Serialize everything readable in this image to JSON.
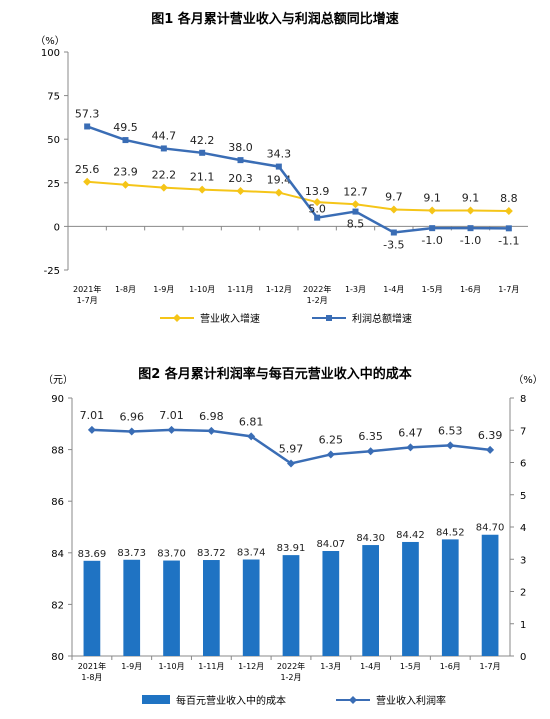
{
  "chart_data": [
    {
      "type": "line",
      "title": "图1 各月累计营业收入与利润总额同比增速",
      "ylabel": "（%）",
      "ylim": [
        -25,
        100
      ],
      "yticks": [
        "100",
        "75",
        "50",
        "25",
        "0",
        "-25"
      ],
      "categories": [
        "2021年1-7月",
        "1-8月",
        "1-9月",
        "1-10月",
        "1-11月",
        "1-12月",
        "2022年1-2月",
        "1-3月",
        "1-4月",
        "1-5月",
        "1-6月",
        "1-7月"
      ],
      "category_lines": [
        [
          "2021年",
          "1-7月"
        ],
        [
          "1-8月"
        ],
        [
          "1-9月"
        ],
        [
          "1-10月"
        ],
        [
          "1-11月"
        ],
        [
          "1-12月"
        ],
        [
          "2022年",
          "1-2月"
        ],
        [
          "1-3月"
        ],
        [
          "1-4月"
        ],
        [
          "1-5月"
        ],
        [
          "1-6月"
        ],
        [
          "1-7月"
        ]
      ],
      "series": [
        {
          "name": "营业收入增速",
          "color": "#f5c518",
          "values": [
            25.6,
            23.9,
            22.2,
            21.1,
            20.3,
            19.4,
            13.9,
            12.7,
            9.7,
            9.1,
            9.1,
            8.8
          ],
          "labels": [
            "25.6",
            "23.9",
            "22.2",
            "21.1",
            "20.3",
            "19.4",
            "13.9",
            "12.7",
            "9.7",
            "9.1",
            "9.1",
            "8.8"
          ]
        },
        {
          "name": "利润总额增速",
          "color": "#3a6db5",
          "values": [
            57.3,
            49.5,
            44.7,
            42.2,
            38.0,
            34.3,
            5.0,
            8.5,
            -3.5,
            -1.0,
            -1.0,
            -1.1
          ],
          "labels": [
            "57.3",
            "49.5",
            "44.7",
            "42.2",
            "38.0",
            "34.3",
            "5.0",
            "8.5",
            "-3.5",
            "-1.0",
            "-1.0",
            "-1.1"
          ]
        }
      ],
      "legend": "bottom"
    },
    {
      "type": "bar+line",
      "title": "图2 各月累计利润率与每百元营业收入中的成本",
      "ylabel_left": "（元）",
      "ylabel_right": "（%）",
      "ylim_left": [
        80,
        90
      ],
      "ylim_right": [
        0,
        8
      ],
      "yticks_left": [
        "90",
        "88",
        "86",
        "84",
        "82",
        "80"
      ],
      "yticks_right": [
        "8",
        "7",
        "6",
        "5",
        "4",
        "3",
        "2",
        "1",
        "0"
      ],
      "categories": [
        "2021年1-8月",
        "1-9月",
        "1-10月",
        "1-11月",
        "1-12月",
        "2022年1-2月",
        "1-3月",
        "1-4月",
        "1-5月",
        "1-6月",
        "1-7月"
      ],
      "category_lines": [
        [
          "2021年",
          "1-8月"
        ],
        [
          "1-9月"
        ],
        [
          "1-10月"
        ],
        [
          "1-11月"
        ],
        [
          "1-12月"
        ],
        [
          "2022年",
          "1-2月"
        ],
        [
          "1-3月"
        ],
        [
          "1-4月"
        ],
        [
          "1-5月"
        ],
        [
          "1-6月"
        ],
        [
          "1-7月"
        ]
      ],
      "series": [
        {
          "name": "每百元营业收入中的成本",
          "kind": "bar",
          "axis": "left",
          "color": "#1f73c3",
          "values": [
            83.69,
            83.73,
            83.7,
            83.72,
            83.74,
            83.91,
            84.07,
            84.3,
            84.42,
            84.52,
            84.7
          ],
          "labels": [
            "83.69",
            "83.73",
            "83.70",
            "83.72",
            "83.74",
            "83.91",
            "84.07",
            "84.30",
            "84.42",
            "84.52",
            "84.70"
          ]
        },
        {
          "name": "营业收入利润率",
          "kind": "line",
          "axis": "right",
          "color": "#3a6db5",
          "values": [
            7.01,
            6.96,
            7.01,
            6.98,
            6.81,
            5.97,
            6.25,
            6.35,
            6.47,
            6.53,
            6.39
          ],
          "labels": [
            "7.01",
            "6.96",
            "7.01",
            "6.98",
            "6.81",
            "5.97",
            "6.25",
            "6.35",
            "6.47",
            "6.53",
            "6.39"
          ]
        }
      ],
      "legend": "bottom"
    }
  ]
}
